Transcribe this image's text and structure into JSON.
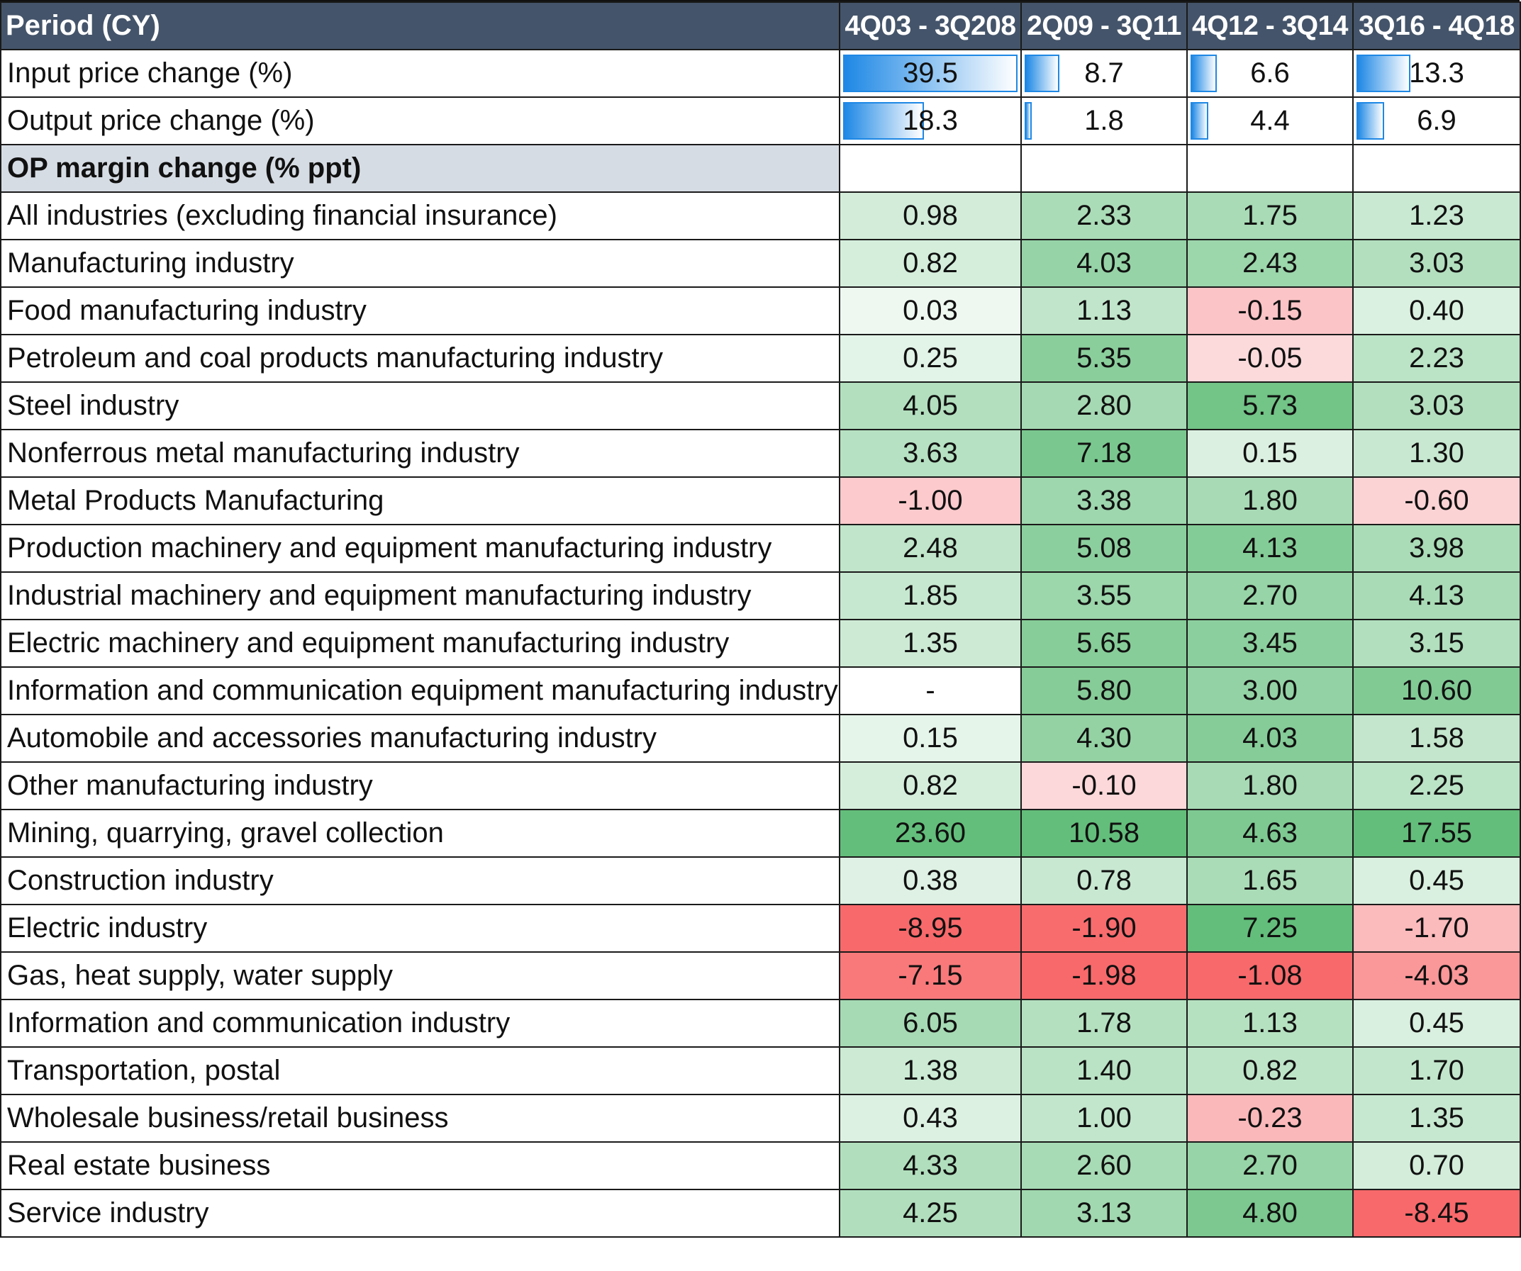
{
  "chart_data": {
    "type": "table",
    "columns": [
      "Period (CY)",
      "4Q03 - 3Q208",
      "2Q09 - 3Q11",
      "4Q12 - 3Q14",
      "3Q16 - 4Q18"
    ],
    "price_rows": [
      {
        "label": "Input price change (%)",
        "values": [
          "39.5",
          "8.7",
          "6.6",
          "13.3"
        ]
      },
      {
        "label": "Output price change (%)",
        "values": [
          "18.3",
          "1.8",
          "4.4",
          "6.9"
        ]
      }
    ],
    "price_bar_max": 39.5,
    "section_title": "OP margin change (% ppt)",
    "rows": [
      {
        "label": "All industries (excluding financial insurance)",
        "values": [
          "0.98",
          "2.33",
          "1.75",
          "1.23"
        ]
      },
      {
        "label": "Manufacturing industry",
        "values": [
          "0.82",
          "4.03",
          "2.43",
          "3.03"
        ]
      },
      {
        "label": "Food manufacturing industry",
        "values": [
          "0.03",
          "1.13",
          "-0.15",
          "0.40"
        ]
      },
      {
        "label": "Petroleum and coal products manufacturing industry",
        "values": [
          "0.25",
          "5.35",
          "-0.05",
          "2.23"
        ]
      },
      {
        "label": "Steel industry",
        "values": [
          "4.05",
          "2.80",
          "5.73",
          "3.03"
        ]
      },
      {
        "label": "Nonferrous metal manufacturing industry",
        "values": [
          "3.63",
          "7.18",
          "0.15",
          "1.30"
        ]
      },
      {
        "label": "Metal Products Manufacturing",
        "values": [
          "-1.00",
          "3.38",
          "1.80",
          "-0.60"
        ]
      },
      {
        "label": "Production machinery and equipment manufacturing industry",
        "values": [
          "2.48",
          "5.08",
          "4.13",
          "3.98"
        ]
      },
      {
        "label": "Industrial machinery and equipment manufacturing industry",
        "values": [
          "1.85",
          "3.55",
          "2.70",
          "4.13"
        ]
      },
      {
        "label": "Electric machinery and equipment manufacturing industry",
        "values": [
          "1.35",
          "5.65",
          "3.45",
          "3.15"
        ]
      },
      {
        "label": "Information and communication equipment manufacturing industry",
        "values": [
          "-",
          "5.80",
          "3.00",
          "10.60"
        ]
      },
      {
        "label": "Automobile and accessories manufacturing industry",
        "values": [
          "0.15",
          "4.30",
          "4.03",
          "1.58"
        ]
      },
      {
        "label": "Other manufacturing industry",
        "values": [
          "0.82",
          "-0.10",
          "1.80",
          "2.25"
        ]
      },
      {
        "label": "Mining, quarrying, gravel collection",
        "values": [
          "23.60",
          "10.58",
          "4.63",
          "17.55"
        ]
      },
      {
        "label": "Construction industry",
        "values": [
          "0.38",
          "0.78",
          "1.65",
          "0.45"
        ]
      },
      {
        "label": "Electric industry",
        "values": [
          "-8.95",
          "-1.90",
          "7.25",
          "-1.70"
        ]
      },
      {
        "label": "Gas, heat supply, water supply",
        "values": [
          "-7.15",
          "-1.98",
          "-1.08",
          "-4.03"
        ]
      },
      {
        "label": "Information and communication industry",
        "values": [
          "6.05",
          "1.78",
          "1.13",
          "0.45"
        ]
      },
      {
        "label": "Transportation, postal",
        "values": [
          "1.38",
          "1.40",
          "0.82",
          "1.70"
        ]
      },
      {
        "label": "Wholesale business/retail business",
        "values": [
          "0.43",
          "1.00",
          "-0.23",
          "1.35"
        ]
      },
      {
        "label": "Real estate business",
        "values": [
          "4.33",
          "2.60",
          "2.70",
          "0.70"
        ]
      },
      {
        "label": "Service industry",
        "values": [
          "4.25",
          "3.13",
          "4.80",
          "-8.45"
        ]
      }
    ]
  },
  "colors": {
    "header_bg": "#44546a",
    "section_bg": "#d6dce4",
    "positive": "#63be7b",
    "negative": "#f8696b",
    "neutral": "#ffffff",
    "bar": "#1e88e5"
  }
}
